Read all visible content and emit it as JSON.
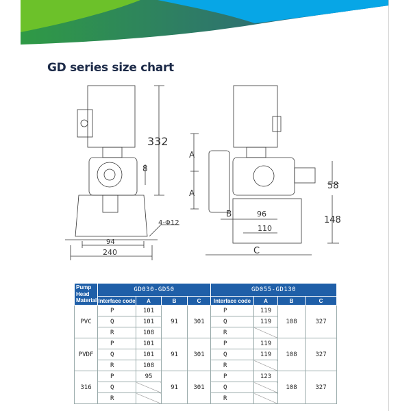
{
  "title": "GD series size chart",
  "colors": {
    "banner_green": "#6cc12a",
    "banner_dark": "#2a6f86",
    "banner_blue": "#07a6e6",
    "header_blue": "#1f5fa8"
  },
  "drawing": {
    "left_view": {
      "height": "332",
      "offset": "8",
      "foot_spacing": "94",
      "base_width": "240",
      "holes": "4-Φ12"
    },
    "right_view": {
      "a_top": "A",
      "a_bottom": "A",
      "b": "B",
      "d96": "96",
      "d110": "110",
      "d58": "58",
      "d148": "148",
      "c": "C"
    }
  },
  "table": {
    "material_header": "Pump Head Material",
    "groups": [
      "GD030-GD50",
      "GD055-GD130"
    ],
    "subheaders": [
      "Interface code",
      "A",
      "B",
      "C"
    ],
    "rows": [
      {
        "material": "PVC",
        "b1": "91",
        "c1": "301",
        "b2": "108",
        "c2": "327",
        "codes": [
          {
            "code": "P",
            "a1": "101",
            "code2": "P",
            "a2": "119"
          },
          {
            "code": "Q",
            "a1": "101",
            "code2": "Q",
            "a2": "119"
          },
          {
            "code": "R",
            "a1": "108",
            "code2": "R",
            "a2": ""
          }
        ]
      },
      {
        "material": "PVDF",
        "b1": "91",
        "c1": "301",
        "b2": "108",
        "c2": "327",
        "codes": [
          {
            "code": "P",
            "a1": "101",
            "code2": "P",
            "a2": "119"
          },
          {
            "code": "Q",
            "a1": "101",
            "code2": "Q",
            "a2": "119"
          },
          {
            "code": "R",
            "a1": "108",
            "code2": "R",
            "a2": ""
          }
        ]
      },
      {
        "material": "316",
        "b1": "91",
        "c1": "301",
        "b2": "108",
        "c2": "327",
        "codes": [
          {
            "code": "P",
            "a1": "95",
            "code2": "P",
            "a2": "123"
          },
          {
            "code": "Q",
            "a1": "",
            "code2": "Q",
            "a2": ""
          },
          {
            "code": "R",
            "a1": "",
            "code2": "R",
            "a2": ""
          }
        ]
      }
    ]
  }
}
